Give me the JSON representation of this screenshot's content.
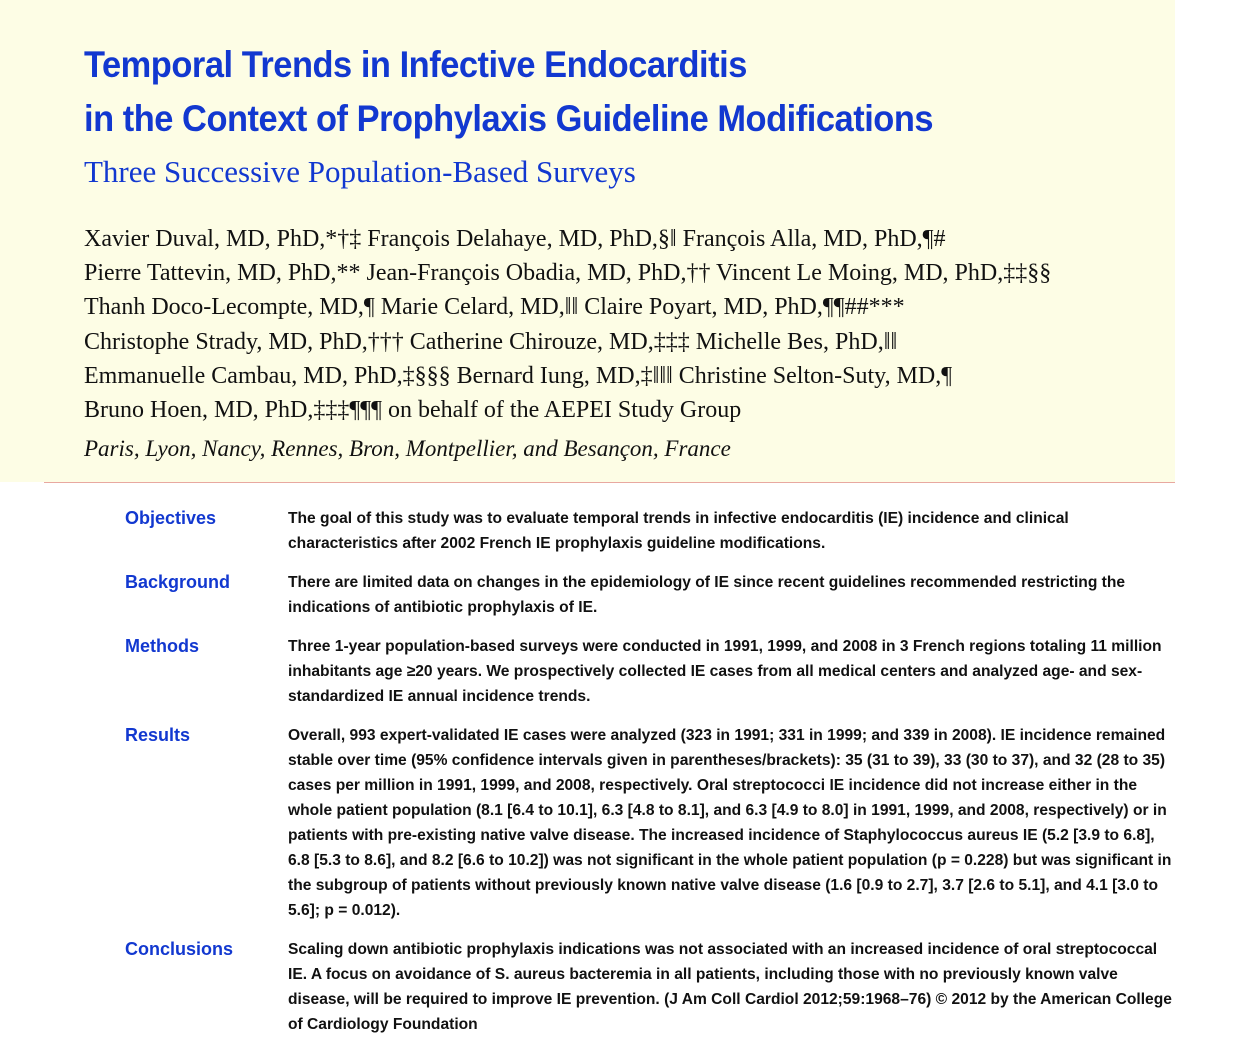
{
  "header": {
    "title_lines": [
      "Temporal Trends in Infective Endocarditis",
      "in the Context of Prophylaxis Guideline Modifications"
    ],
    "subtitle": "Three Successive Population-Based Surveys",
    "author_lines": [
      "Xavier Duval, MD, PhD,*†‡ François Delahaye, MD, PhD,§‖ François Alla, MD, PhD,¶#",
      "Pierre Tattevin, MD, PhD,** Jean-François Obadia, MD, PhD,†† Vincent Le Moing, MD, PhD,‡‡§§",
      "Thanh Doco-Lecompte, MD,¶ Marie Celard, MD,‖‖ Claire Poyart, MD, PhD,¶¶##***",
      "Christophe Strady, MD, PhD,††† Catherine Chirouze, MD,‡‡‡ Michelle Bes, PhD,‖‖",
      "Emmanuelle Cambau, MD, PhD,‡§§§ Bernard Iung, MD,‡‖‖‖ Christine Selton-Suty, MD,¶",
      "Bruno Hoen, MD, PhD,‡‡‡¶¶¶ on behalf of the AEPEI Study Group"
    ],
    "affiliation": "Paris, Lyon, Nancy, Rennes, Bron, Montpellier, and Besançon, France"
  },
  "abstract": [
    {
      "label": "Objectives",
      "text": "The goal of this study was to evaluate temporal trends in infective endocarditis (IE) incidence and clinical characteristics after 2002 French IE prophylaxis guideline modifications."
    },
    {
      "label": "Background",
      "text": "There are limited data on changes in the epidemiology of IE since recent guidelines recommended restricting the indications of antibiotic prophylaxis of IE."
    },
    {
      "label": "Methods",
      "text": "Three 1-year population-based surveys were conducted in 1991, 1999, and 2008 in 3 French regions totaling 11 million inhabitants age ≥20 years. We prospectively collected IE cases from all medical centers and analyzed age- and sex-standardized IE annual incidence trends."
    },
    {
      "label": "Results",
      "text": "Overall, 993 expert-validated IE cases were analyzed (323 in 1991; 331 in 1999; and 339 in 2008). IE incidence remained stable over time (95% confidence intervals given in parentheses/brackets): 35 (31 to 39), 33 (30 to 37), and 32 (28 to 35) cases per million in 1991, 1999, and 2008, respectively. Oral streptococci IE incidence did not increase either in the whole patient population (8.1 [6.4 to 10.1], 6.3 [4.8 to 8.1], and 6.3 [4.9 to 8.0] in 1991, 1999, and 2008, respectively) or in patients with pre-existing native valve disease. The increased incidence of Staphylococcus aureus IE (5.2 [3.9 to 6.8], 6.8 [5.3 to 8.6], and 8.2 [6.6 to 10.2]) was not significant in the whole patient population (p = 0.228) but was significant in the subgroup of patients without previously known native valve disease (1.6 [0.9 to 2.7], 3.7 [2.6 to 5.1], and 4.1 [3.0 to 5.6]; p = 0.012)."
    },
    {
      "label": "Conclusions",
      "text": "Scaling down antibiotic prophylaxis indications was not associated with an increased incidence of oral streptococcal IE. A focus on avoidance of S. aureus bacteremia in all patients, including those with no previously known valve disease, will be required to improve IE prevention.    (J Am Coll Cardiol 2012;59:1968–76) © 2012 by the American College of Cardiology Foundation"
    }
  ],
  "colors": {
    "accent": "#1238d0",
    "header_bg": "#fdfde5",
    "rule": "#e8a8a0"
  }
}
